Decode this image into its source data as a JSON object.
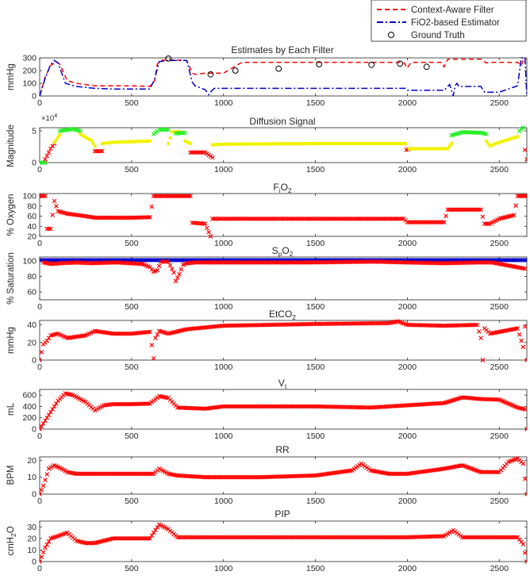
{
  "legend": {
    "position": "top-right",
    "entries": [
      {
        "label": "Context-Aware Filter",
        "style": "dashed",
        "color": "#ff0000"
      },
      {
        "label": "FiO2-based Estimator",
        "style": "dashdot",
        "color": "#0000cc"
      },
      {
        "label": "Ground Truth",
        "style": "circle",
        "color": "#000000"
      }
    ]
  },
  "colors": {
    "red": "#ff0000",
    "blue": "#0000cc",
    "yellow": "#f2f200",
    "green": "#22ee22",
    "axis": "#262626"
  },
  "chart_data": [
    {
      "id": "estimates",
      "type": "line",
      "title": "Estimates by Each Filter",
      "ylabel": "mmHg",
      "xlim": [
        0,
        2650
      ],
      "ylim": [
        0,
        300
      ],
      "xticks": [
        "0",
        "500",
        "1000",
        "1500",
        "2000",
        "2500"
      ],
      "yticks": [
        "0",
        "100",
        "200",
        "300"
      ],
      "series": [
        {
          "name": "Context-Aware Filter",
          "color": "#ff0000",
          "style": "dashed",
          "x": [
            0,
            30,
            60,
            90,
            110,
            150,
            200,
            250,
            300,
            400,
            500,
            600,
            625,
            640,
            660,
            700,
            800,
            830,
            850,
            900,
            950,
            1000,
            1100,
            1500,
            1700,
            1980,
            2000,
            2020,
            2100,
            2190,
            2200,
            2220,
            2300,
            2400,
            2430,
            2440,
            2600,
            2620,
            2630,
            2650
          ],
          "y": [
            0,
            150,
            240,
            270,
            250,
            120,
            100,
            90,
            80,
            80,
            80,
            75,
            120,
            250,
            280,
            285,
            280,
            180,
            170,
            180,
            180,
            180,
            265,
            265,
            265,
            265,
            220,
            265,
            265,
            265,
            230,
            290,
            290,
            290,
            260,
            265,
            265,
            240,
            280,
            290
          ]
        },
        {
          "name": "FiO2-based Estimator",
          "color": "#0000cc",
          "style": "dashdot",
          "x": [
            0,
            30,
            60,
            80,
            100,
            140,
            200,
            300,
            400,
            500,
            600,
            625,
            650,
            700,
            800,
            830,
            845,
            900,
            920,
            935,
            950,
            1000,
            1500,
            1990,
            2000,
            2100,
            2190,
            2200,
            2230,
            2250,
            2260,
            2270,
            2280,
            2400,
            2420,
            2440,
            2500,
            2560,
            2600,
            2620,
            2640,
            2650
          ],
          "y": [
            0,
            140,
            250,
            280,
            260,
            100,
            75,
            60,
            55,
            55,
            55,
            130,
            270,
            280,
            280,
            110,
            80,
            50,
            10,
            40,
            60,
            60,
            60,
            60,
            45,
            45,
            45,
            45,
            90,
            0,
            80,
            100,
            75,
            75,
            30,
            30,
            30,
            60,
            80,
            300,
            300,
            0
          ]
        },
        {
          "name": "Ground Truth",
          "color": "#000000",
          "style": "circle",
          "x": [
            700,
            930,
            1065,
            1300,
            1520,
            1805,
            1960,
            2105
          ],
          "y": [
            295,
            170,
            200,
            215,
            250,
            245,
            255,
            230
          ]
        }
      ]
    },
    {
      "id": "diffusion",
      "type": "scatter",
      "title": "Diffusion Signal",
      "ylabel": "Magnitude",
      "exponent": "×10",
      "exponent_power": "4",
      "xlim": [
        0,
        2650
      ],
      "ylim": [
        0,
        5.5
      ],
      "xticks": [
        "0",
        "500",
        "1000",
        "1500",
        "2000",
        "2500"
      ],
      "yticks": [
        "0",
        "5"
      ],
      "segments": [
        {
          "color": "#22ee22",
          "marker": "x",
          "x": [
            0,
            30
          ],
          "y": [
            0,
            0
          ]
        },
        {
          "color": "#ff0000",
          "marker": "x",
          "x": [
            30,
            60,
            80
          ],
          "y": [
            0.5,
            2.2,
            3.0
          ]
        },
        {
          "color": "#f2f200",
          "marker": "dot",
          "x": [
            80,
            110
          ],
          "y": [
            3.2,
            4.4
          ]
        },
        {
          "color": "#22ee22",
          "marker": "x",
          "x": [
            110,
            180,
            220
          ],
          "y": [
            5.0,
            5.3,
            5.0
          ]
        },
        {
          "color": "#f2f200",
          "marker": "dot",
          "x": [
            220,
            260,
            280,
            300
          ],
          "y": [
            4.5,
            3.8,
            3.5,
            2.6
          ]
        },
        {
          "color": "#ff0000",
          "marker": "x",
          "x": [
            300,
            340
          ],
          "y": [
            1.8,
            1.8
          ]
        },
        {
          "color": "#f2f200",
          "marker": "dot",
          "x": [
            340,
            400,
            500,
            600
          ],
          "y": [
            3.0,
            3.2,
            3.3,
            3.4
          ]
        },
        {
          "color": "#22ee22",
          "marker": "x",
          "x": [
            620,
            650,
            700
          ],
          "y": [
            4.5,
            5.2,
            5.2
          ]
        },
        {
          "color": "#f2f200",
          "marker": "dot",
          "x": [
            700,
            720,
            760
          ],
          "y": [
            3.0,
            4.8,
            4.9
          ]
        },
        {
          "color": "#22ee22",
          "marker": "x",
          "x": [
            740,
            790
          ],
          "y": [
            4.6,
            4.7
          ]
        },
        {
          "color": "#f2f200",
          "marker": "dot",
          "x": [
            790,
            820
          ],
          "y": [
            3.4,
            3.0
          ]
        },
        {
          "color": "#ff0000",
          "marker": "x",
          "x": [
            820,
            900,
            940
          ],
          "y": [
            1.6,
            1.6,
            0.8
          ]
        },
        {
          "color": "#f2f200",
          "marker": "dot",
          "x": [
            940,
            1000,
            1500,
            1990
          ],
          "y": [
            2.8,
            2.9,
            3.0,
            3.0
          ]
        },
        {
          "color": "#ff0000",
          "marker": "x",
          "x": [
            1995,
            2005
          ],
          "y": [
            2.0,
            2.1
          ]
        },
        {
          "color": "#f2f200",
          "marker": "dot",
          "x": [
            2010,
            2100,
            2220,
            2240
          ],
          "y": [
            2.2,
            2.2,
            2.2,
            3.0
          ]
        },
        {
          "color": "#22ee22",
          "marker": "x",
          "x": [
            2240,
            2300,
            2400,
            2430
          ],
          "y": [
            4.3,
            4.8,
            4.7,
            4.5
          ]
        },
        {
          "color": "#f2f200",
          "marker": "dot",
          "x": [
            2430,
            2450,
            2480,
            2600
          ],
          "y": [
            3.4,
            2.6,
            3.0,
            4.1
          ]
        },
        {
          "color": "#22ee22",
          "marker": "x",
          "x": [
            2610,
            2630
          ],
          "y": [
            5.0,
            5.5
          ]
        },
        {
          "color": "#ff0000",
          "marker": "x",
          "x": [
            2640,
            2650
          ],
          "y": [
            2.0,
            0.5
          ]
        }
      ]
    },
    {
      "id": "fio2",
      "type": "scatter",
      "title": "FiO2",
      "title_main": "F",
      "title_sub": "i",
      "title_end": "O",
      "title_sub2": "2",
      "ylabel": "% Oxygen",
      "xlim": [
        0,
        2650
      ],
      "ylim": [
        20,
        105
      ],
      "xticks": [
        "0",
        "500",
        "1000",
        "1500",
        "2000",
        "2500"
      ],
      "yticks": [
        "20",
        "40",
        "60",
        "80",
        "100"
      ],
      "color": "#ff0000",
      "marker": "x",
      "x": [
        0,
        30,
        40,
        60,
        80,
        100,
        150,
        250,
        300,
        400,
        500,
        600,
        620,
        650,
        700,
        820,
        830,
        900,
        930,
        940,
        1000,
        1500,
        1980,
        2000,
        2200,
        2220,
        2400,
        2420,
        2450,
        2500,
        2580,
        2600,
        2650
      ],
      "y": [
        100,
        100,
        35,
        35,
        90,
        70,
        65,
        60,
        57,
        57,
        57,
        58,
        100,
        100,
        100,
        100,
        47,
        45,
        20,
        55,
        55,
        55,
        55,
        48,
        48,
        73,
        73,
        45,
        45,
        55,
        62,
        100,
        100
      ]
    },
    {
      "id": "spo2",
      "type": "scatter",
      "title": "SpO2",
      "title_main": "S",
      "title_sub": "p",
      "title_end": "O",
      "title_sub2": "2",
      "ylabel": "% Saturation",
      "xlim": [
        0,
        2650
      ],
      "ylim": [
        50,
        105
      ],
      "xticks": [
        "0",
        "500",
        "1000",
        "1500",
        "2000",
        "2500"
      ],
      "yticks": [
        "60",
        "80",
        "100"
      ],
      "series": [
        {
          "color": "#0000cc",
          "marker": "x",
          "x": [
            0,
            200,
            400,
            600,
            800,
            1000,
            1200,
            1400,
            1600,
            1800,
            2000,
            2200,
            2400,
            2600,
            2650
          ],
          "y": [
            101,
            101,
            101,
            101,
            101,
            101,
            101,
            101,
            101,
            101,
            101,
            101,
            101,
            101,
            101
          ]
        },
        {
          "color": "#ff0000",
          "marker": "x",
          "x": [
            20,
            60,
            120,
            200,
            280,
            420,
            560,
            600,
            620,
            640,
            660,
            700,
            730,
            740,
            760,
            780,
            800,
            850,
            1100,
            1330,
            1460,
            1820,
            1990,
            2200,
            2400,
            2460,
            2640
          ],
          "y": [
            98,
            96,
            97,
            98,
            97,
            98,
            96,
            92,
            86,
            88,
            99,
            99,
            85,
            74,
            83,
            95,
            97,
            98,
            98,
            98,
            98,
            99,
            98,
            97,
            98,
            98,
            90
          ]
        }
      ]
    },
    {
      "id": "etco2",
      "type": "scatter",
      "title": "EtCO2",
      "title_main": "EtCO",
      "title_sub": "",
      "title_end": "",
      "title_sub2": "2",
      "ylabel": "mmHg",
      "xlim": [
        0,
        2650
      ],
      "ylim": [
        0,
        45
      ],
      "xticks": [
        "0",
        "500",
        "1000",
        "1500",
        "2000",
        "2500"
      ],
      "yticks": [
        "0",
        "20",
        "40"
      ],
      "color": "#ff0000",
      "marker": "x",
      "x": [
        0,
        20,
        40,
        60,
        100,
        150,
        250,
        300,
        400,
        500,
        600,
        620,
        630,
        650,
        700,
        800,
        900,
        1000,
        1500,
        1900,
        1950,
        2000,
        2200,
        2380,
        2400,
        2410,
        2420,
        2450,
        2600,
        2630,
        2640,
        2650
      ],
      "y": [
        0,
        18,
        22,
        28,
        30,
        25,
        28,
        33,
        30,
        30,
        32,
        2,
        25,
        33,
        30,
        35,
        37,
        39,
        41,
        42,
        44,
        40,
        39,
        40,
        25,
        0,
        36,
        30,
        36,
        15,
        38,
        0
      ]
    },
    {
      "id": "vt",
      "type": "scatter",
      "title": "Vt",
      "title_main": "V",
      "title_sub": "t",
      "title_end": "",
      "title_sub2": "",
      "ylabel": "mL",
      "xlim": [
        0,
        2650
      ],
      "ylim": [
        0,
        700
      ],
      "xticks": [
        "0",
        "500",
        "1000",
        "1500",
        "2000",
        "2500"
      ],
      "yticks": [
        "0",
        "200",
        "400",
        "600"
      ],
      "color": "#ff0000",
      "marker": "x",
      "x": [
        0,
        30,
        60,
        100,
        140,
        180,
        250,
        300,
        350,
        400,
        500,
        600,
        650,
        700,
        750,
        900,
        1000,
        1500,
        1800,
        2000,
        2200,
        2300,
        2400,
        2500,
        2600,
        2640,
        2650
      ],
      "y": [
        0,
        150,
        300,
        500,
        630,
        600,
        480,
        330,
        420,
        440,
        440,
        450,
        580,
        550,
        380,
        360,
        400,
        400,
        380,
        420,
        460,
        560,
        530,
        520,
        380,
        350,
        0
      ]
    },
    {
      "id": "rr",
      "type": "scatter",
      "title": "RR",
      "ylabel": "BPM",
      "xlim": [
        0,
        2650
      ],
      "ylim": [
        0,
        22
      ],
      "xticks": [
        "0",
        "500",
        "1000",
        "1500",
        "2000",
        "2500"
      ],
      "yticks": [
        "0",
        "10",
        "20"
      ],
      "color": "#ff0000",
      "marker": "x",
      "x": [
        0,
        20,
        50,
        80,
        120,
        150,
        200,
        500,
        620,
        650,
        700,
        750,
        900,
        1200,
        1500,
        1700,
        1750,
        1800,
        1900,
        2000,
        2200,
        2300,
        2400,
        2500,
        2550,
        2600,
        2630,
        2650
      ],
      "y": [
        0,
        5,
        15,
        17,
        15,
        13,
        12,
        12,
        12,
        15,
        12,
        11,
        10,
        10,
        11,
        14,
        18,
        14,
        12,
        12,
        15,
        17,
        13,
        13,
        19,
        21,
        18,
        0
      ]
    },
    {
      "id": "pip",
      "type": "scatter",
      "title": "PIP",
      "ylabel": "cmH2O",
      "ylabel_main": "cmH",
      "ylabel_sub": "2",
      "ylabel_end": "O",
      "xlim": [
        0,
        2650
      ],
      "ylim": [
        0,
        35
      ],
      "xticks": [
        "0",
        "500",
        "1000",
        "1500",
        "2000",
        "2500"
      ],
      "yticks": [
        "0",
        "10",
        "20",
        "30"
      ],
      "color": "#ff0000",
      "marker": "x",
      "x": [
        0,
        30,
        60,
        100,
        150,
        200,
        250,
        300,
        400,
        600,
        620,
        650,
        700,
        750,
        800,
        1500,
        2000,
        2200,
        2250,
        2300,
        2400,
        2600,
        2630,
        2650
      ],
      "y": [
        0,
        12,
        20,
        22,
        25,
        18,
        16,
        16,
        20,
        20,
        25,
        32,
        28,
        21,
        21,
        21,
        21,
        22,
        27,
        21,
        21,
        21,
        15,
        0
      ]
    }
  ]
}
